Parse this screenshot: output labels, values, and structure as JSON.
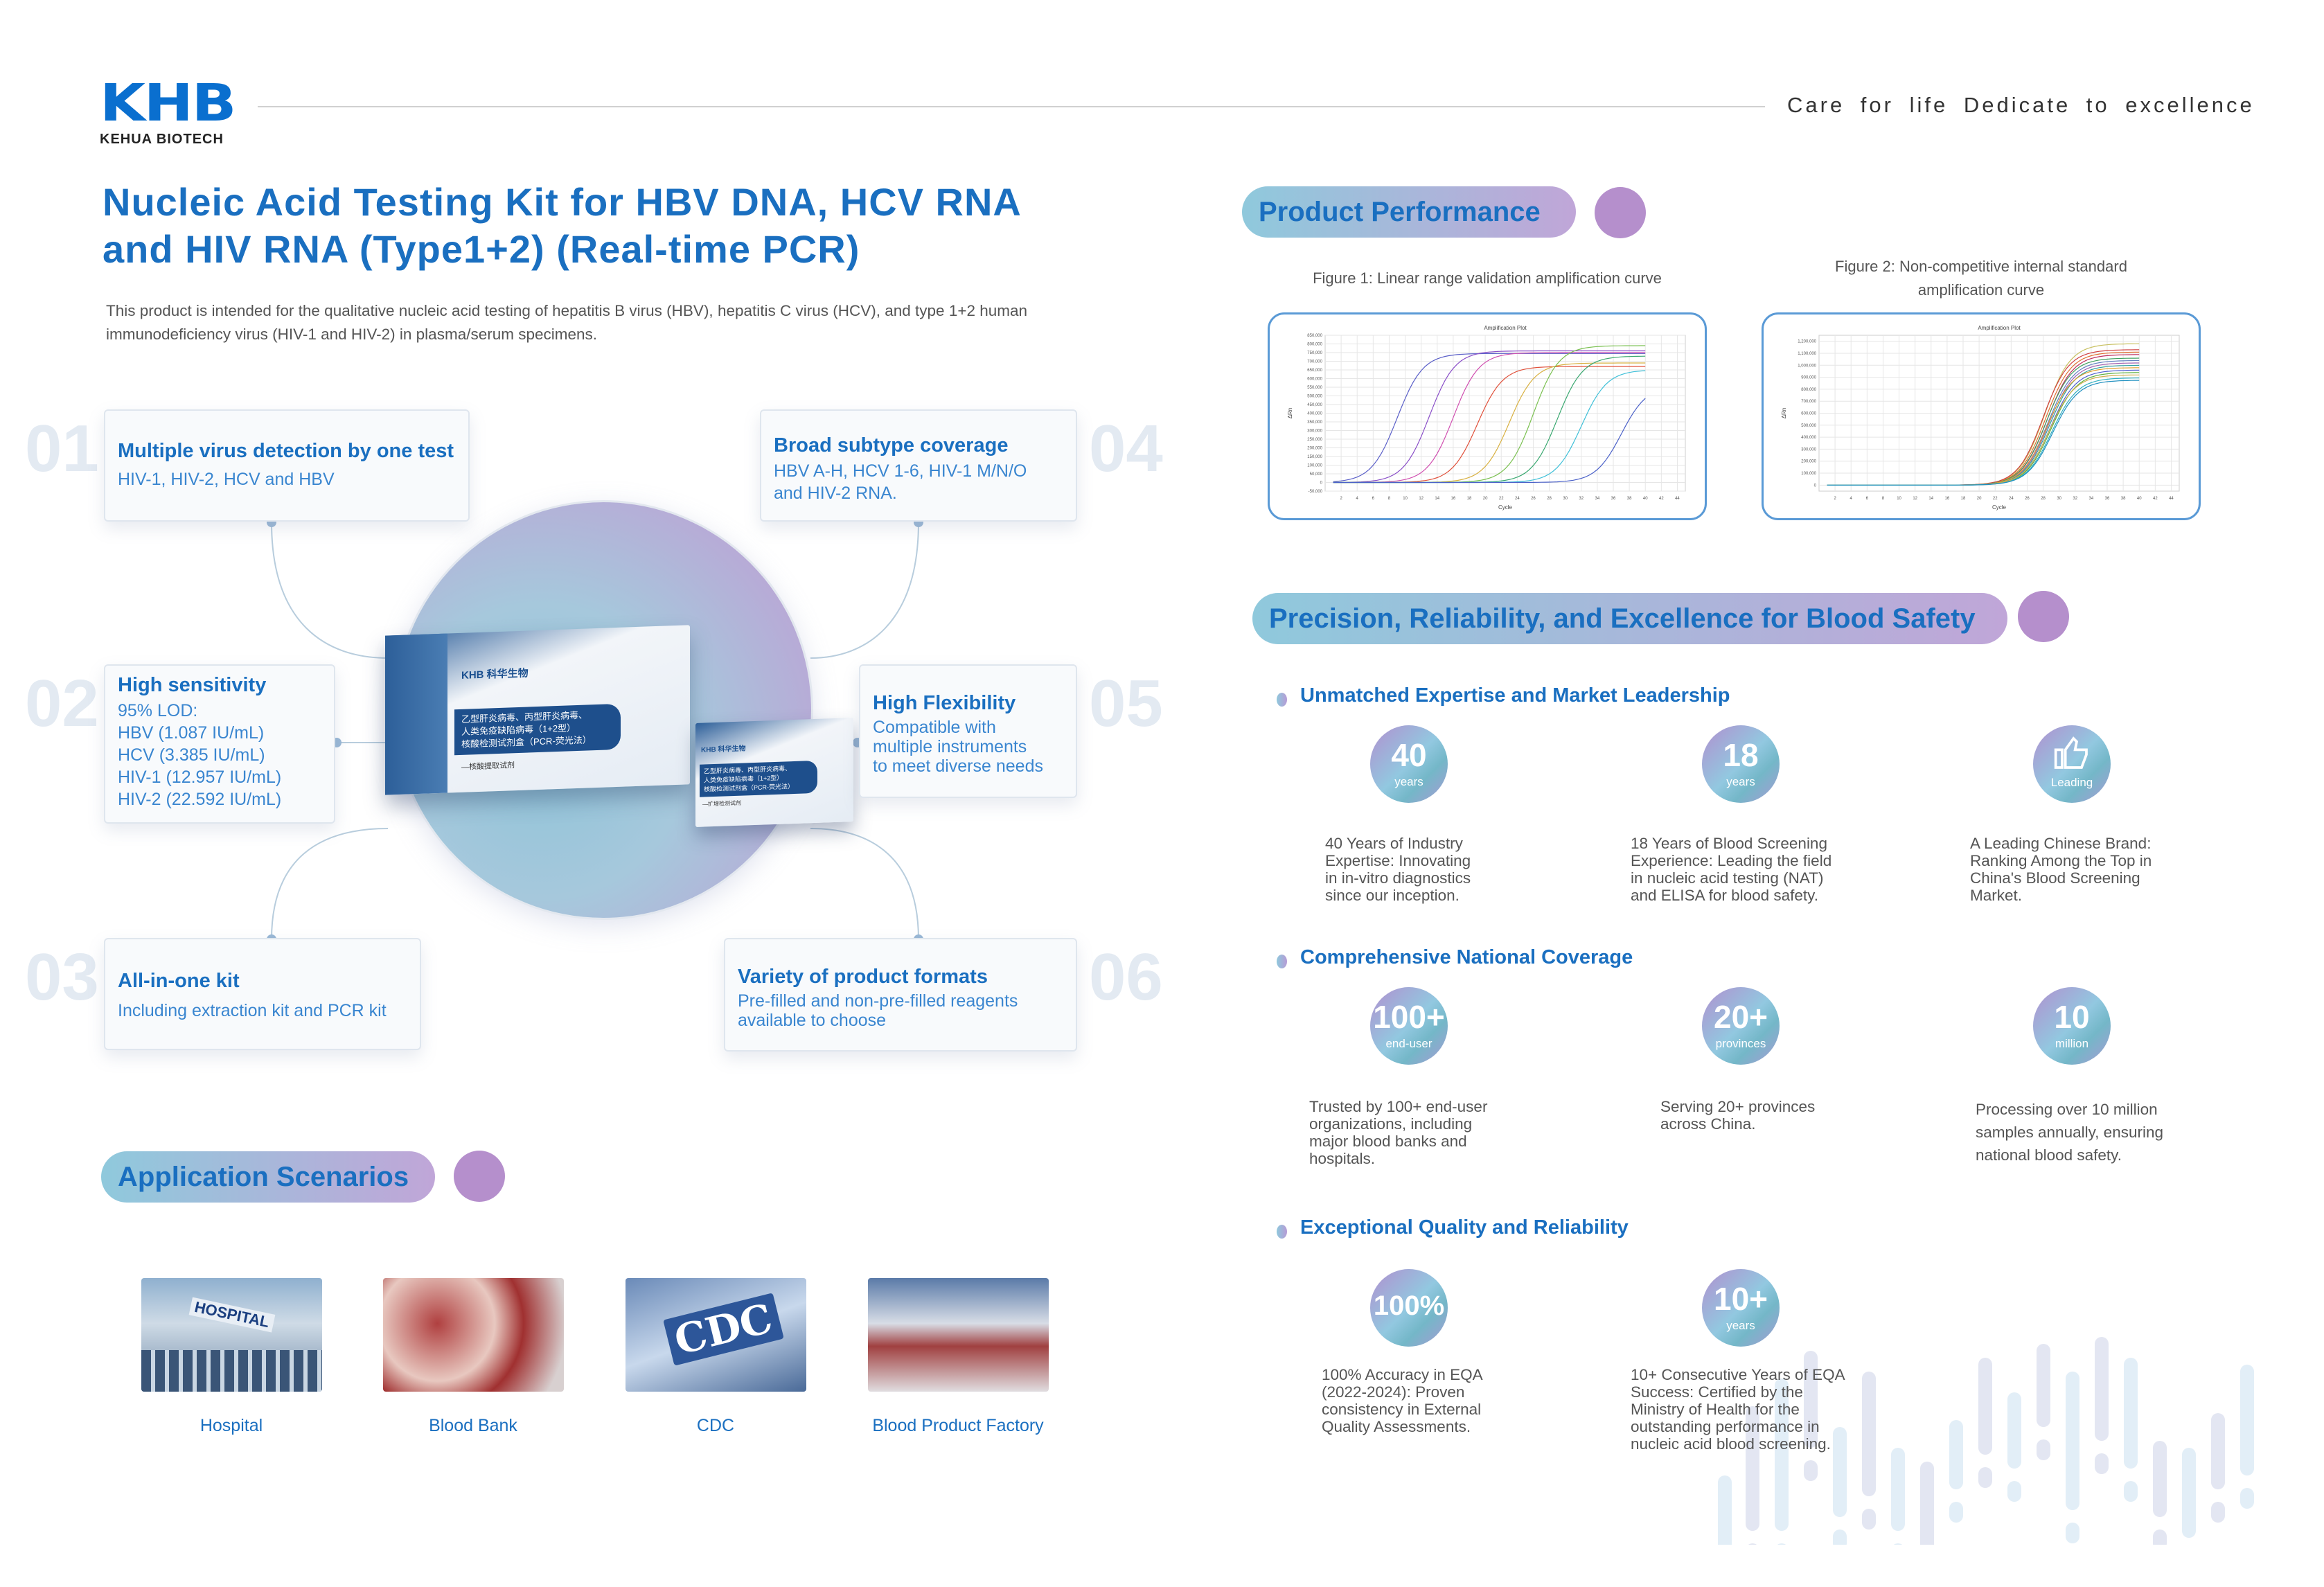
{
  "header": {
    "logo_main": "KHB",
    "logo_sub": "KEHUA BIOTECH",
    "tagline": "Care for life  Dedicate to excellence"
  },
  "title": {
    "line1": "Nucleic Acid Testing Kit for HBV DNA, HCV RNA",
    "line2": "and HIV RNA (Type1+2) (Real-time PCR)"
  },
  "description": "This product is intended for the qualitative nucleic acid testing of hepatitis B virus (HBV), hepatitis C virus (HCV), and type 1+2 human immunodeficiency virus (HIV-1 and HIV-2) in plasma/serum specimens.",
  "features": [
    {
      "num": "01",
      "title": "Multiple virus detection by one test",
      "lines": [
        "HIV-1, HIV-2, HCV and HBV"
      ]
    },
    {
      "num": "02",
      "title": "High sensitivity",
      "lines": [
        "95% LOD:",
        "HBV (1.087 IU/mL)",
        "HCV (3.385 IU/mL)",
        "HIV-1 (12.957 IU/mL)",
        "HIV-2 (22.592 IU/mL)"
      ]
    },
    {
      "num": "03",
      "title": "All-in-one kit",
      "lines": [
        "Including extraction kit and PCR kit"
      ]
    },
    {
      "num": "04",
      "title": "Broad subtype coverage",
      "lines": [
        "HBV A-H, HCV 1-6, HIV-1 M/N/O",
        "and HIV-2 RNA."
      ]
    },
    {
      "num": "05",
      "title": "High Flexibility",
      "lines": [
        "Compatible with",
        "multiple instruments",
        "to meet diverse needs"
      ]
    },
    {
      "num": "06",
      "title": "Variety of product formats",
      "lines": [
        "Pre-filled and non-pre-filled reagents",
        "available to choose"
      ]
    }
  ],
  "product_box": {
    "brand": "KHB 科华生物",
    "name_lines": [
      "乙型肝炎病毒、丙型肝炎病毒、",
      "人类免疫缺陷病毒（1+2型）",
      "核酸检测试剂盒（PCR-荧光法）"
    ],
    "sub1": "—核酸提取试剂",
    "sub2": "—扩增检测试剂"
  },
  "application": {
    "title": "Application Scenarios",
    "items": [
      {
        "label": "Hospital",
        "sign": "HOSPITAL"
      },
      {
        "label": "Blood Bank"
      },
      {
        "label": "CDC",
        "sign": "CDC"
      },
      {
        "label": "Blood Product Factory"
      }
    ]
  },
  "performance": {
    "title": "Product Performance",
    "fig1_caption": "Figure 1: Linear range validation amplification curve",
    "fig2_caption_l1": "Figure 2: Non-competitive internal standard",
    "fig2_caption_l2": "amplification curve"
  },
  "chart_data": [
    {
      "type": "line",
      "title": "Amplification Plot",
      "xlabel": "Cycle",
      "ylabel": "ΔRn",
      "xlim": [
        0,
        45
      ],
      "ylim": [
        -50000,
        850000
      ],
      "grid": true,
      "xticks": [
        2,
        4,
        6,
        8,
        10,
        12,
        14,
        16,
        18,
        20,
        22,
        24,
        26,
        28,
        30,
        32,
        34,
        36,
        38,
        40,
        42,
        44
      ],
      "yticks": [
        -50000,
        0,
        50000,
        100000,
        150000,
        200000,
        250000,
        300000,
        350000,
        400000,
        450000,
        500000,
        550000,
        600000,
        650000,
        700000,
        750000,
        800000,
        850000
      ],
      "series": [
        {
          "ct": 9,
          "plateau": 745000,
          "color": "#5a5fc8"
        },
        {
          "ct": 13,
          "plateau": 760000,
          "color": "#8a4fc8"
        },
        {
          "ct": 16,
          "plateau": 750000,
          "color": "#d04fb0"
        },
        {
          "ct": 19,
          "plateau": 670000,
          "color": "#e0503a"
        },
        {
          "ct": 23,
          "plateau": 690000,
          "color": "#d8b040"
        },
        {
          "ct": 26,
          "plateau": 790000,
          "color": "#7ac050"
        },
        {
          "ct": 29,
          "plateau": 730000,
          "color": "#3aa870"
        },
        {
          "ct": 32,
          "plateau": 650000,
          "color": "#40c0d8"
        },
        {
          "ct": 37,
          "plateau": 560000,
          "color": "#4a60c8"
        }
      ]
    },
    {
      "type": "line",
      "title": "Amplification Plot",
      "xlabel": "Cycle",
      "ylabel": "ΔRn",
      "xlim": [
        0,
        45
      ],
      "ylim": [
        -50000,
        1250000
      ],
      "grid": true,
      "xticks": [
        2,
        4,
        6,
        8,
        10,
        12,
        14,
        16,
        18,
        20,
        22,
        24,
        26,
        28,
        30,
        32,
        34,
        36,
        38,
        40,
        42,
        44
      ],
      "yticks": [
        0,
        100000,
        200000,
        300000,
        400000,
        500000,
        600000,
        700000,
        800000,
        900000,
        1000000,
        1100000,
        1200000
      ],
      "series": [
        {
          "ct": 28.2,
          "plateau": 1180000,
          "color": "#c8c060"
        },
        {
          "ct": 28.0,
          "plateau": 1130000,
          "color": "#d04040"
        },
        {
          "ct": 28.3,
          "plateau": 1110000,
          "color": "#e07030"
        },
        {
          "ct": 28.5,
          "plateau": 1090000,
          "color": "#c03060"
        },
        {
          "ct": 28.4,
          "plateau": 1060000,
          "color": "#40a060"
        },
        {
          "ct": 28.6,
          "plateau": 1040000,
          "color": "#6080c0"
        },
        {
          "ct": 28.7,
          "plateau": 1020000,
          "color": "#a060b0"
        },
        {
          "ct": 28.8,
          "plateau": 1000000,
          "color": "#30a0a0"
        },
        {
          "ct": 28.5,
          "plateau": 980000,
          "color": "#e0a030"
        },
        {
          "ct": 28.9,
          "plateau": 960000,
          "color": "#5060d0"
        },
        {
          "ct": 29.0,
          "plateau": 940000,
          "color": "#60b040"
        },
        {
          "ct": 28.8,
          "plateau": 920000,
          "color": "#d0b050"
        },
        {
          "ct": 29.1,
          "plateau": 895000,
          "color": "#30b0c0"
        },
        {
          "ct": 29.2,
          "plateau": 875000,
          "color": "#2090c0"
        }
      ]
    }
  ],
  "blood_safety": {
    "title": "Precision, Reliability, and Excellence for Blood Safety",
    "sections": [
      {
        "heading": "Unmatched Expertise and Market Leadership",
        "stats": [
          {
            "value": "40",
            "unit": "years",
            "desc": [
              "40 Years of Industry",
              "Expertise: Innovating",
              "in in-vitro diagnostics",
              "since our inception."
            ]
          },
          {
            "value": "18",
            "unit": "years",
            "desc": [
              "18 Years of Blood Screening",
              "Experience: Leading the field",
              "in nucleic acid testing (NAT)",
              "and ELISA for blood safety."
            ]
          },
          {
            "value": "",
            "icon": "thumbs-up-icon",
            "unit": "Leading",
            "desc": [
              "A Leading Chinese Brand:",
              "Ranking Among the Top in",
              "China's Blood Screening",
              "Market."
            ]
          }
        ]
      },
      {
        "heading": "Comprehensive National Coverage",
        "stats": [
          {
            "value": "100+",
            "unit": "end-user",
            "desc": [
              "Trusted by 100+ end-user",
              "organizations, including",
              "major blood banks and",
              "hospitals."
            ]
          },
          {
            "value": "20+",
            "unit": "provinces",
            "desc": [
              "Serving 20+ provinces",
              "across China."
            ]
          },
          {
            "value": "10",
            "unit": "million",
            "desc": [
              "Processing over 10 million",
              "samples annually, ensuring",
              "national blood safety."
            ]
          }
        ]
      },
      {
        "heading": "Exceptional Quality and Reliability",
        "stats": [
          {
            "value": "100%",
            "unit": "",
            "desc": [
              "100% Accuracy in EQA",
              "(2022-2024): Proven",
              "consistency in External",
              "Quality Assessments."
            ]
          },
          {
            "value": "10+",
            "unit": "years",
            "desc": [
              "10+ Consecutive Years of EQA",
              "Success: Certified by the",
              "Ministry of Health for the",
              "outstanding performance in",
              "nucleic acid blood screening."
            ]
          }
        ]
      }
    ]
  },
  "colors": {
    "brand_blue": "#1a6fc0",
    "gradient_teal": "#8fc9dc",
    "gradient_purple": "#b58fcc"
  }
}
